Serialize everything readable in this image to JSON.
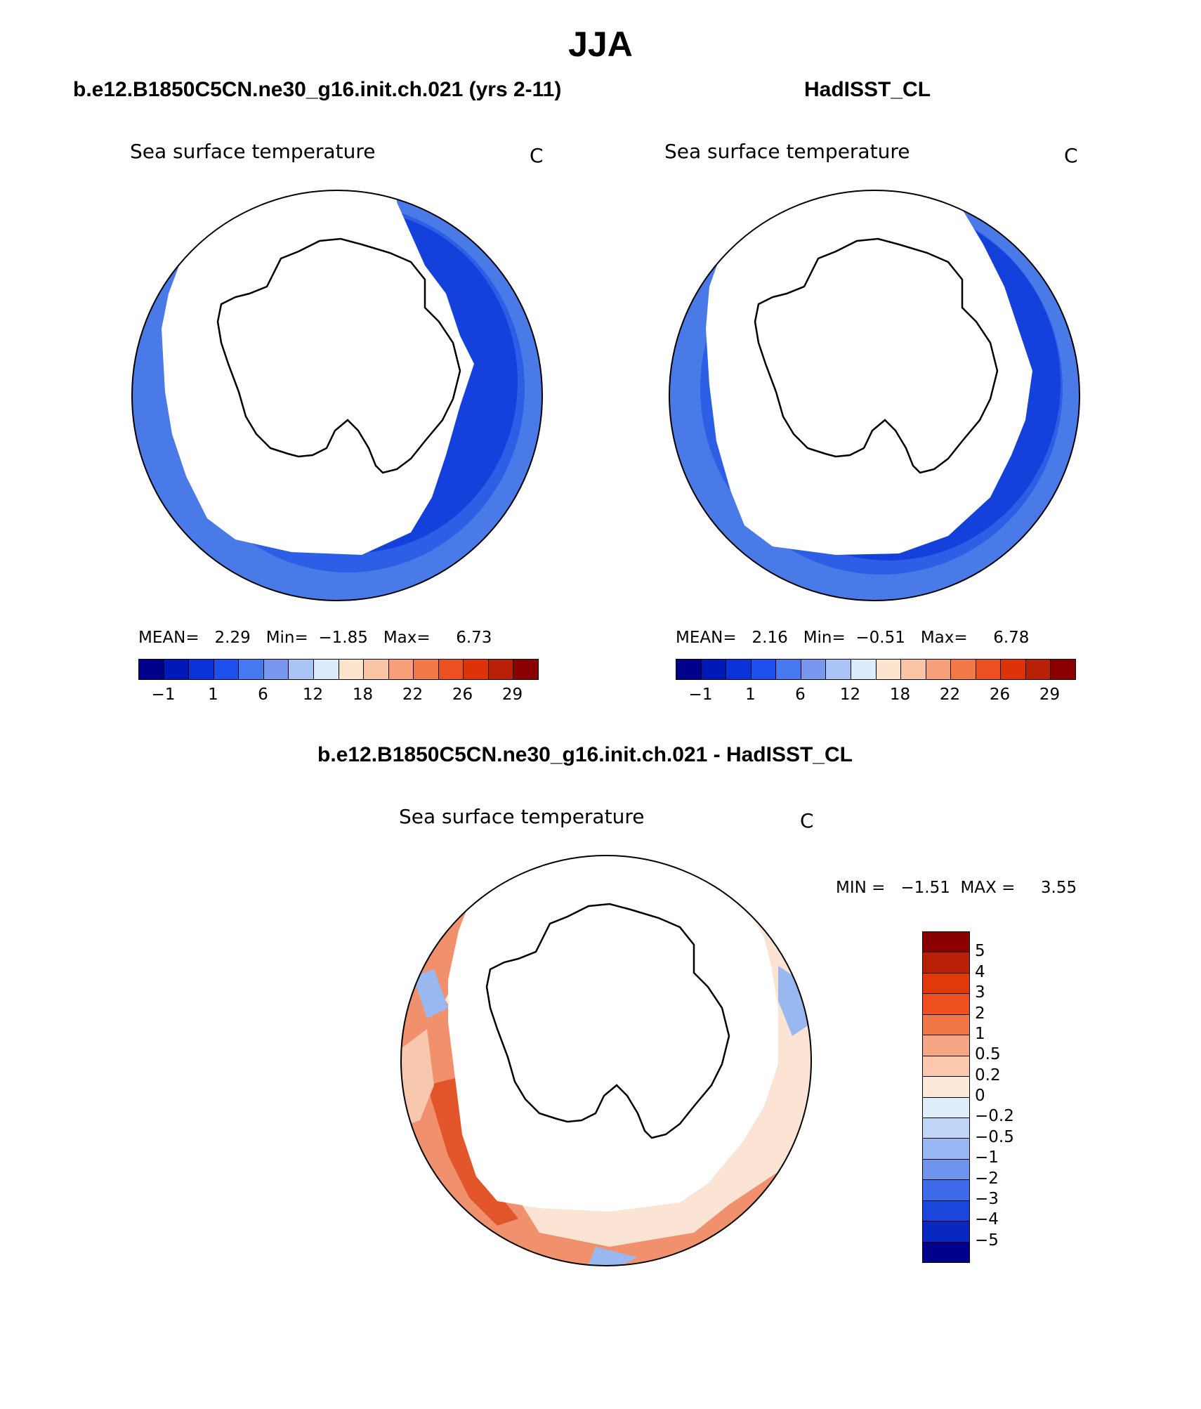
{
  "title": "JJA",
  "panels": [
    {
      "id": "model",
      "header": "b.e12.B1850C5CN.ne30_g16.init.ch.021 (yrs 2-11)",
      "variable": "Sea surface temperature",
      "units": "C",
      "stats": {
        "mean_label": "MEAN=",
        "mean": "2.29",
        "min_label": "Min=",
        "min": "−1.85",
        "max_label": "Max=",
        "max": "6.73"
      }
    },
    {
      "id": "obs",
      "header": "HadISST_CL",
      "variable": "Sea surface temperature",
      "units": "C",
      "stats": {
        "mean_label": "MEAN=",
        "mean": "2.16",
        "min_label": "Min=",
        "min": "−0.51",
        "max_label": "Max=",
        "max": "6.78"
      }
    }
  ],
  "diff_panel": {
    "header": "b.e12.B1850C5CN.ne30_g16.init.ch.021 - HadISST_CL",
    "variable": "Sea surface temperature",
    "units": "C",
    "stats_text": "MIN =   −1.51  MAX =     3.55"
  },
  "colorbar_abs": {
    "tick_labels": [
      "−1",
      "1",
      "6",
      "12",
      "18",
      "22",
      "26",
      "29"
    ],
    "colors": [
      "#00008a",
      "#0018b8",
      "#0a32d8",
      "#1e50f0",
      "#4678f0",
      "#7898f0",
      "#aac4f8",
      "#dcecfc",
      "#fde4cf",
      "#fcc4a6",
      "#f8a07a",
      "#f27848",
      "#ec5020",
      "#de3208",
      "#b82008",
      "#8a0000"
    ]
  },
  "colorbar_diff": {
    "tick_labels": [
      "5",
      "4",
      "3",
      "2",
      "1",
      "0.5",
      "0.2",
      "0",
      "−0.2",
      "−0.5",
      "−1",
      "−2",
      "−3",
      "−4",
      "−5"
    ],
    "colors": [
      "#8a0000",
      "#b82008",
      "#e03a0a",
      "#ee5020",
      "#f07848",
      "#f6a684",
      "#fbc8ad",
      "#fde9d8",
      "#e0eefc",
      "#c0d6f8",
      "#98b8f4",
      "#6e94ee",
      "#3c6ae8",
      "#1a46dc",
      "#0828c0",
      "#00008a"
    ]
  },
  "map_colors": {
    "sst_outer": "#4a7ae8",
    "sst_mid": "#2c5ee6",
    "sst_inner": "#1440dc",
    "diff_warm": "#f0906c",
    "diff_hot": "#e2542a",
    "diff_light": "#f8c8ae",
    "diff_cool": "#9ab8f0",
    "diff_neutral": "#fbe4d4"
  }
}
